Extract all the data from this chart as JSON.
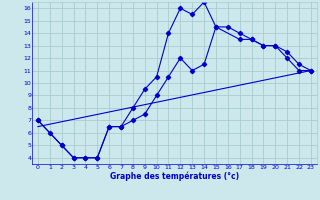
{
  "xlabel": "Graphe des températures (°c)",
  "bg_color": "#cce8ec",
  "line_color": "#0000cc",
  "grid_color": "#aacccc",
  "xlim": [
    -0.5,
    23.5
  ],
  "ylim": [
    3.5,
    16.5
  ],
  "xticks": [
    0,
    1,
    2,
    3,
    4,
    5,
    6,
    7,
    8,
    9,
    10,
    11,
    12,
    13,
    14,
    15,
    16,
    17,
    18,
    19,
    20,
    21,
    22,
    23
  ],
  "yticks": [
    4,
    5,
    6,
    7,
    8,
    9,
    10,
    11,
    12,
    13,
    14,
    15,
    16
  ],
  "line1_x": [
    0,
    1,
    2,
    3,
    4,
    5,
    6,
    7,
    8,
    9,
    10,
    11,
    12,
    13,
    14,
    15,
    16,
    17,
    18,
    19,
    20,
    21,
    22,
    23
  ],
  "line1_y": [
    7,
    6,
    5,
    4,
    4,
    4,
    6.5,
    6.5,
    8,
    9.5,
    10.5,
    14,
    16,
    15.5,
    16.5,
    14.5,
    14.5,
    14,
    13.5,
    13,
    13,
    12,
    11,
    11
  ],
  "line2_x": [
    0,
    2,
    3,
    4,
    5,
    6,
    7,
    8,
    9,
    10,
    11,
    12,
    13,
    14,
    15,
    17,
    18,
    19,
    20,
    21,
    22,
    23
  ],
  "line2_y": [
    7,
    5,
    4,
    4,
    4,
    6.5,
    6.5,
    7.0,
    7.5,
    9.0,
    10.5,
    12.0,
    11.0,
    11.5,
    14.5,
    13.5,
    13.5,
    13.0,
    13.0,
    12.5,
    11.5,
    11
  ],
  "line3_x": [
    0,
    23
  ],
  "line3_y": [
    6.5,
    11.0
  ]
}
